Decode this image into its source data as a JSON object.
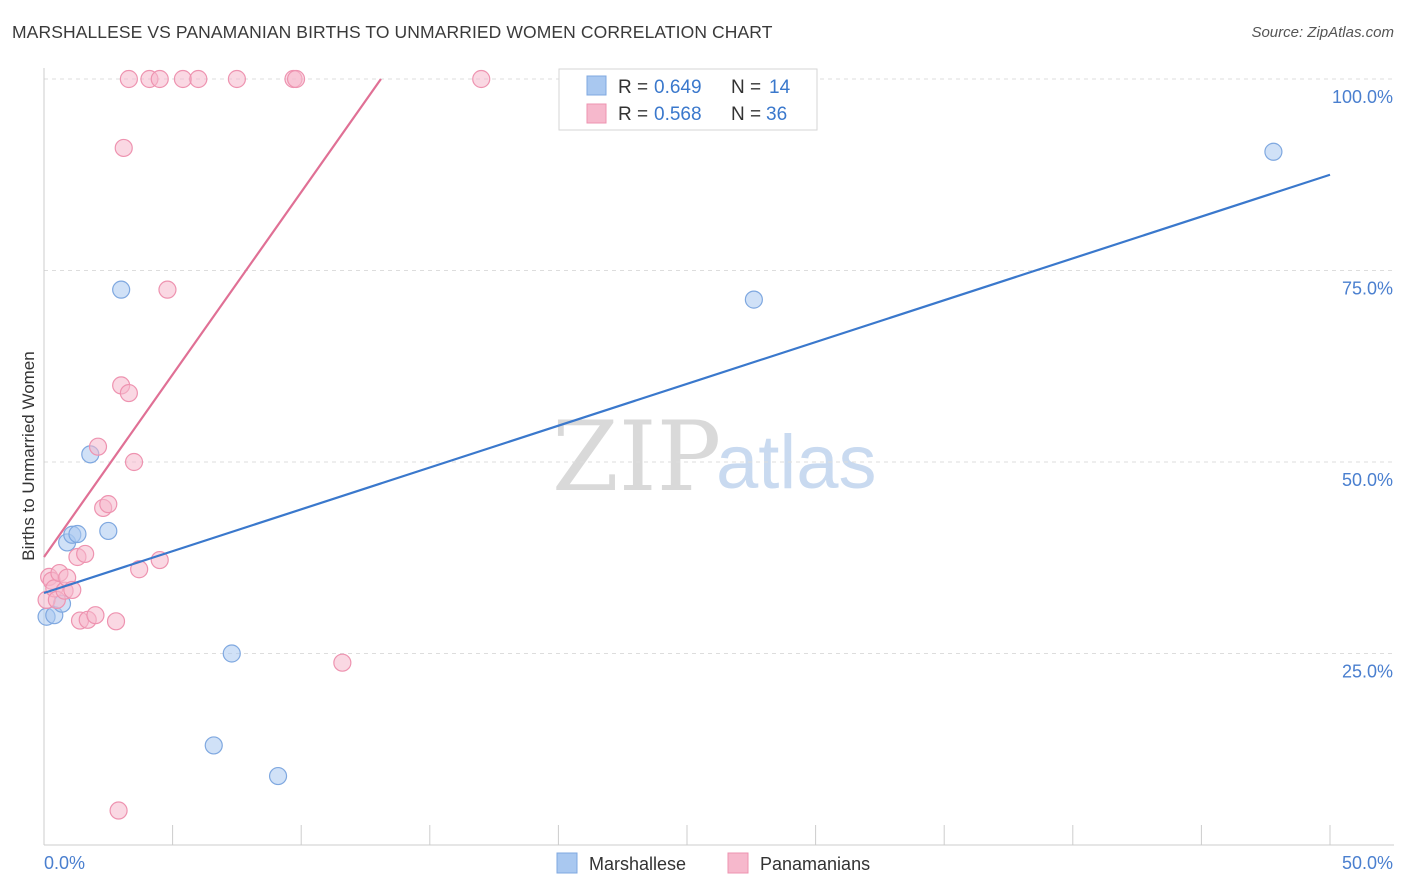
{
  "header": {
    "title": "MARSHALLESE VS PANAMANIAN BIRTHS TO UNMARRIED WOMEN CORRELATION CHART",
    "source": "Source: ZipAtlas.com"
  },
  "watermark": {
    "zip": "ZIP",
    "atlas": "atlas"
  },
  "colors": {
    "blue_fill": "#a9c8f0",
    "blue_stroke": "#7fa8e0",
    "blue_line": "#3a78cc",
    "pink_fill": "#f6b8cc",
    "pink_stroke": "#ee93b0",
    "pink_line": "#e07095",
    "grid": "#dddddd",
    "tick_label": "#4a7fcf"
  },
  "legend": {
    "rows": [
      {
        "r_label": "R = ",
        "r_value": "0.649",
        "n_label": "N = ",
        "n_value": "14"
      },
      {
        "r_label": "R = ",
        "r_value": "0.568",
        "n_label": "N = ",
        "n_value": "36"
      }
    ]
  },
  "chart_data": {
    "type": "scatter",
    "title": "MARSHALLESE VS PANAMANIAN BIRTHS TO UNMARRIED WOMEN CORRELATION CHART",
    "xlabel": "",
    "ylabel": "Births to Unmarried Women",
    "xlim": [
      0,
      50
    ],
    "ylim": [
      0,
      100
    ],
    "x_tick_labels": {
      "min": "0.0%",
      "max": "50.0%"
    },
    "y_ticks": [
      {
        "value": 25,
        "label": "25.0%"
      },
      {
        "value": 50,
        "label": "50.0%"
      },
      {
        "value": 75,
        "label": "75.0%"
      },
      {
        "value": 100,
        "label": "100.0%"
      }
    ],
    "series": [
      {
        "name": "Marshallese",
        "R": 0.649,
        "N": 14,
        "trend": {
          "x0": 0,
          "y0": 32.9,
          "x1": 50,
          "y1": 87.5
        },
        "points": [
          [
            0.1,
            29.8
          ],
          [
            0.4,
            30.0
          ],
          [
            0.7,
            31.5
          ],
          [
            0.9,
            39.5
          ],
          [
            1.1,
            40.5
          ],
          [
            1.3,
            40.6
          ],
          [
            1.8,
            51.0
          ],
          [
            2.5,
            41.0
          ],
          [
            3.0,
            72.5
          ],
          [
            6.6,
            13.0
          ],
          [
            7.3,
            25.0
          ],
          [
            9.1,
            9.0
          ],
          [
            27.6,
            71.2
          ],
          [
            47.8,
            90.5
          ]
        ]
      },
      {
        "name": "Panamanians",
        "R": 0.568,
        "N": 36,
        "trend": {
          "x0": 0,
          "y0": 37.6,
          "x1": 13.1,
          "y1": 100
        },
        "points": [
          [
            0.1,
            32.0
          ],
          [
            0.2,
            35.0
          ],
          [
            0.3,
            34.5
          ],
          [
            0.4,
            33.5
          ],
          [
            0.5,
            32.0
          ],
          [
            0.6,
            35.5
          ],
          [
            0.8,
            33.2
          ],
          [
            0.9,
            34.9
          ],
          [
            1.1,
            33.3
          ],
          [
            1.3,
            37.6
          ],
          [
            1.4,
            29.3
          ],
          [
            1.6,
            38.0
          ],
          [
            1.7,
            29.4
          ],
          [
            2.0,
            30.0
          ],
          [
            2.1,
            52.0
          ],
          [
            2.3,
            44.0
          ],
          [
            2.5,
            44.5
          ],
          [
            2.8,
            29.2
          ],
          [
            2.9,
            4.5
          ],
          [
            3.0,
            60.0
          ],
          [
            3.1,
            91.0
          ],
          [
            3.3,
            59.0
          ],
          [
            3.3,
            100
          ],
          [
            3.5,
            50.0
          ],
          [
            3.7,
            36.0
          ],
          [
            4.1,
            100
          ],
          [
            4.5,
            37.2
          ],
          [
            4.5,
            100
          ],
          [
            4.8,
            72.5
          ],
          [
            5.4,
            100
          ],
          [
            6.0,
            100
          ],
          [
            7.5,
            100
          ],
          [
            9.7,
            100
          ],
          [
            9.8,
            100
          ],
          [
            11.6,
            23.8
          ],
          [
            17.0,
            100
          ]
        ]
      }
    ]
  }
}
